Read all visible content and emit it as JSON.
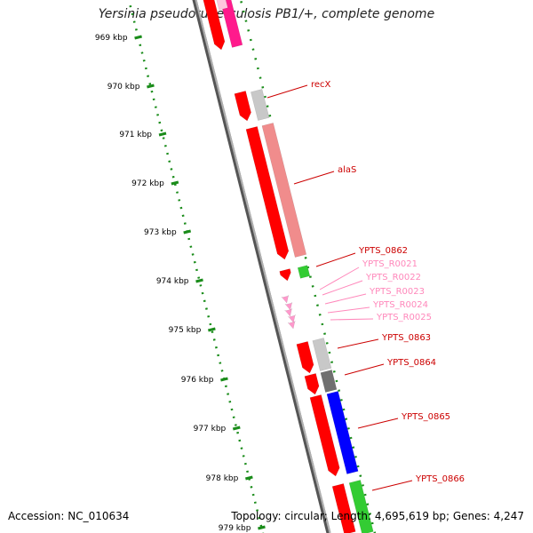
{
  "title": "Yersinia pseudotuberculosis PB1/+, complete genome",
  "footer": {
    "accession": "Accession: NC_010634",
    "summary": "Topology: circular; Length: 4,695,619 bp; Genes: 4,247"
  },
  "scale": {
    "ticks": [
      "969 kbp",
      "970 kbp",
      "971 kbp",
      "972 kbp",
      "973 kbp",
      "974 kbp",
      "975 kbp",
      "976 kbp",
      "977 kbp",
      "978 kbp",
      "979 kbp"
    ]
  },
  "colors": {
    "cds": "#ff0000",
    "rrna_light": "#f08c8c",
    "trna": "#ff99cc",
    "grey": "#c8c8c8",
    "dark_grey": "#707070",
    "green": "#33cc33",
    "blue": "#0000ff",
    "magenta": "#ff1a8c",
    "backbone": "#8c8c8c",
    "tick": "#1a8c1a",
    "label_dark": "#cc0000",
    "label_pink": "#ff88bb"
  },
  "genes": [
    {
      "name": "recX",
      "color_key": "label_dark"
    },
    {
      "name": "alaS",
      "color_key": "label_dark"
    },
    {
      "name": "YPTS_0862",
      "color_key": "label_dark"
    },
    {
      "name": "YPTS_R0021",
      "color_key": "label_pink"
    },
    {
      "name": "YPTS_R0022",
      "color_key": "label_pink"
    },
    {
      "name": "YPTS_R0023",
      "color_key": "label_pink"
    },
    {
      "name": "YPTS_R0024",
      "color_key": "label_pink"
    },
    {
      "name": "YPTS_R0025",
      "color_key": "label_pink"
    },
    {
      "name": "YPTS_0863",
      "color_key": "label_dark"
    },
    {
      "name": "YPTS_0864",
      "color_key": "label_dark"
    },
    {
      "name": "YPTS_0865",
      "color_key": "label_dark"
    },
    {
      "name": "YPTS_0866",
      "color_key": "label_dark"
    }
  ]
}
